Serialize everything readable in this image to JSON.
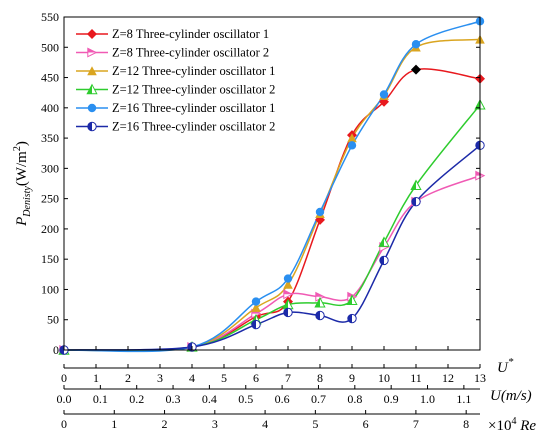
{
  "chart_data": {
    "type": "line",
    "ylabel": {
      "main": "P",
      "sub": "Denisty",
      "unit_open": "(W/m",
      "unit_sup": "2",
      "unit_close": ")"
    },
    "xlabel_primary": {
      "main": "U",
      "sup": "*"
    },
    "xlabel_secondary": {
      "main": "U",
      "unit": "(m/s)"
    },
    "xlabel_tertiary": {
      "prefix": "×10",
      "sup": "4",
      "main": "Re"
    },
    "xlim": [
      0,
      13
    ],
    "ylim": [
      0,
      550
    ],
    "x_ticks": [
      "0",
      "1",
      "2",
      "3",
      "4",
      "5",
      "6",
      "7",
      "8",
      "9",
      "10",
      "11",
      "12",
      "13"
    ],
    "y_ticks": [
      "0",
      "50",
      "100",
      "150",
      "200",
      "250",
      "300",
      "350",
      "400",
      "450",
      "500",
      "550"
    ],
    "secondary_axis": {
      "ticks": [
        "0.0",
        "0.1",
        "0.2",
        "0.3",
        "0.4",
        "0.5",
        "0.6",
        "0.7",
        "0.8",
        "0.9",
        "1.0",
        "1.1"
      ],
      "values": [
        0.0,
        0.1,
        0.2,
        0.3,
        0.4,
        0.5,
        0.6,
        0.7,
        0.8,
        0.9,
        1.0,
        1.1
      ],
      "u_star_per_unit": 11.36
    },
    "tertiary_axis": {
      "ticks": [
        "0",
        "1",
        "2",
        "3",
        "4",
        "5",
        "6",
        "7",
        "8"
      ],
      "values": [
        0,
        1,
        2,
        3,
        4,
        5,
        6,
        7,
        8
      ],
      "u_star_per_unit": 1.571
    },
    "series": [
      {
        "name": "Z=8 Three-cylinder oscillator 1",
        "color": "#e8191e",
        "marker": "diamond",
        "x": [
          0,
          4,
          6,
          7,
          8,
          9,
          10,
          11,
          13
        ],
        "y": [
          0,
          5,
          55,
          80,
          215,
          355,
          410,
          463,
          448
        ]
      },
      {
        "name": "Z=8 Three-cylinder oscillator 2",
        "color": "#f05ab4",
        "marker": "triangle-right",
        "x": [
          0,
          4,
          6,
          7,
          8,
          9,
          10,
          11,
          13
        ],
        "y": [
          0,
          5,
          60,
          92,
          88,
          88,
          170,
          245,
          288
        ]
      },
      {
        "name": "Z=12 Three-cylinder oscillator 1",
        "color": "#daa520",
        "marker": "triangle-up",
        "x": [
          0,
          4,
          6,
          7,
          8,
          9,
          10,
          11,
          13
        ],
        "y": [
          0,
          5,
          70,
          108,
          225,
          350,
          420,
          500,
          513
        ]
      },
      {
        "name": "Z=12 Three-cylinder oscillator 2",
        "color": "#2ecc2e",
        "marker": "triangle-up-half",
        "x": [
          0,
          4,
          6,
          7,
          8,
          9,
          10,
          11,
          13
        ],
        "y": [
          0,
          5,
          50,
          75,
          78,
          82,
          178,
          272,
          405
        ]
      },
      {
        "name": "Z=16 Three-cylinder oscillator 1",
        "color": "#2a8ff0",
        "marker": "circle",
        "x": [
          0,
          4,
          6,
          7,
          8,
          9,
          10,
          11,
          13
        ],
        "y": [
          0,
          5,
          80,
          118,
          228,
          338,
          422,
          505,
          543
        ]
      },
      {
        "name": "Z=16 Three-cylinder oscillator 2",
        "color": "#1c2aa8",
        "marker": "circle-half",
        "x": [
          0,
          4,
          6,
          7,
          8,
          9,
          10,
          11,
          13
        ],
        "y": [
          0,
          5,
          42,
          62,
          57,
          52,
          148,
          245,
          338
        ]
      }
    ],
    "legend_position": "top-left",
    "grid": false
  }
}
